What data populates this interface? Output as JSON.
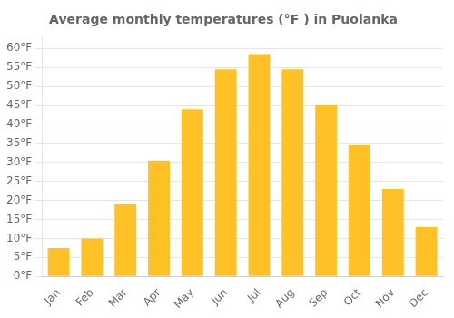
{
  "chart_data": {
    "type": "bar",
    "title": "Average monthly temperatures (°F ) in Puolanka",
    "categories": [
      "Jan",
      "Feb",
      "Mar",
      "Apr",
      "May",
      "Jun",
      "Jul",
      "Aug",
      "Sep",
      "Oct",
      "Nov",
      "Dec"
    ],
    "values": [
      7.5,
      10.0,
      19.0,
      30.5,
      44.0,
      54.5,
      58.5,
      54.5,
      45.0,
      34.5,
      23.0,
      13.0
    ],
    "color": "#FFC125",
    "ylim": [
      0,
      63
    ],
    "yticks": [
      {
        "value": 0,
        "label": "0°F"
      },
      {
        "value": 5,
        "label": "5°F"
      },
      {
        "value": 10,
        "label": "10°F"
      },
      {
        "value": 15,
        "label": "15°F"
      },
      {
        "value": 20,
        "label": "20°F"
      },
      {
        "value": 25,
        "label": "25°F"
      },
      {
        "value": 30,
        "label": "30°F"
      },
      {
        "value": 35,
        "label": "35°F"
      },
      {
        "value": 40,
        "label": "40°F"
      },
      {
        "value": 45,
        "label": "45°F"
      },
      {
        "value": 50,
        "label": "50°F"
      },
      {
        "value": 55,
        "label": "55°F"
      },
      {
        "value": 60,
        "label": "60°F"
      }
    ],
    "grid": true
  }
}
